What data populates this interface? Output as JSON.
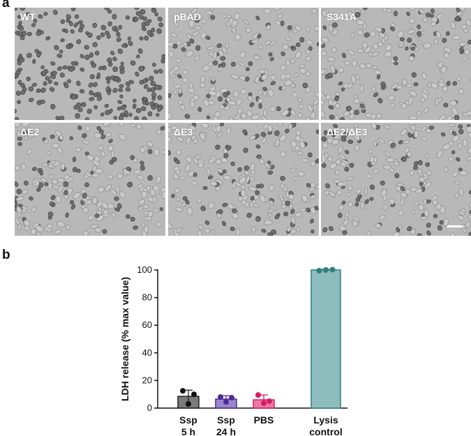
{
  "panel_a": {
    "letter": "a",
    "images": [
      {
        "label": "WT"
      },
      {
        "label": "pBAD"
      },
      {
        "label": "S341A"
      },
      {
        "label": "ΔE2"
      },
      {
        "label": "ΔE3"
      },
      {
        "label": "ΔE2/ΔE3"
      }
    ]
  },
  "panel_b": {
    "letter": "b"
  },
  "chart_data": {
    "type": "bar",
    "ylabel": "LDH release (% max value)",
    "ylim": [
      0,
      100
    ],
    "yticks": [
      0,
      20,
      40,
      60,
      80,
      100
    ],
    "categories": [
      {
        "line1": "Ssp",
        "line2": "5 h"
      },
      {
        "line1": "Ssp",
        "line2": "24 h"
      },
      {
        "line1": "PBS",
        "line2": ""
      },
      {
        "line1": "Lysis",
        "line2": "control"
      }
    ],
    "values": [
      8.5,
      6.5,
      6.0,
      100
    ],
    "errors": [
      4.5,
      2.5,
      3.5,
      0.5
    ],
    "points": [
      [
        12.5,
        3.0,
        10.0
      ],
      [
        8.0,
        4.5,
        7.5
      ],
      [
        9.5,
        3.5,
        5.0
      ],
      [
        99.5,
        100.0,
        100.2
      ]
    ],
    "bar_fill": [
      "#7a7a7a",
      "#9b86c7",
      "#e87aa8",
      "#8fbcbc"
    ],
    "bar_stroke": [
      "#222222",
      "#4b2a99",
      "#d81b60",
      "#2f7f7f"
    ],
    "point_color": [
      "#111111",
      "#4b2a99",
      "#d81b60",
      "#2f7f7f"
    ],
    "grid": false
  }
}
